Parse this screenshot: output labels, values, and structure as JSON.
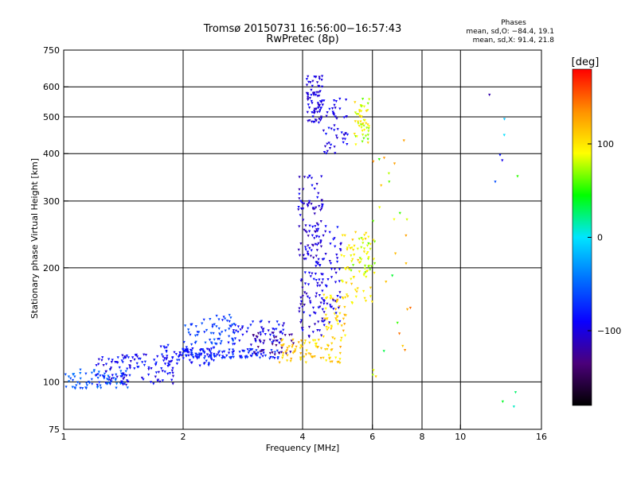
{
  "header": {
    "title_line1": "Tromsø 20150731 16:56:00−16:57:43",
    "title_line2": "RwPretec (8p)"
  },
  "stats": {
    "heading": "Phases",
    "o_line": "mean, sd,O: −84.4, 19.1",
    "x_line": "mean, sd,X:  91.4, 21.8"
  },
  "colorbar": {
    "label": "[deg]",
    "ticks": [
      {
        "value": 100,
        "label": "100"
      },
      {
        "value": 0,
        "label": "0"
      },
      {
        "value": -100,
        "label": "−100"
      }
    ],
    "range": [
      -180,
      180
    ],
    "gradient": [
      "#000000",
      "#4b007a",
      "#0a00ff",
      "#0070ff",
      "#00e5ff",
      "#00ff00",
      "#ffff00",
      "#ff9000",
      "#ff0000"
    ]
  },
  "chart_data": {
    "type": "scatter",
    "xlabel": "Frequency [MHz]",
    "ylabel": "Stationary phase Virtual Height [km]",
    "xscale": "log",
    "yscale": "log",
    "xlim": [
      1,
      16
    ],
    "ylim": [
      75,
      750
    ],
    "xticks": [
      {
        "value": 1,
        "label": "1"
      },
      {
        "value": 2,
        "label": "2"
      },
      {
        "value": 4,
        "label": "4"
      },
      {
        "value": 6,
        "label": "6"
      },
      {
        "value": 8,
        "label": "8"
      },
      {
        "value": 10,
        "label": "10"
      },
      {
        "value": 16,
        "label": "16"
      }
    ],
    "yticks": [
      {
        "value": 75,
        "label": "75"
      },
      {
        "value": 100,
        "label": "100"
      },
      {
        "value": 200,
        "label": "200"
      },
      {
        "value": 300,
        "label": "300"
      },
      {
        "value": 400,
        "label": "400"
      },
      {
        "value": 500,
        "label": "500"
      },
      {
        "value": 600,
        "label": "600"
      },
      {
        "value": 750,
        "label": "750"
      }
    ],
    "xgrid": [
      2,
      4,
      6,
      8,
      10
    ],
    "ygrid": [
      100,
      200,
      300,
      400,
      500,
      600
    ],
    "grid": true,
    "color_by": "phase [deg]",
    "clusters": [
      {
        "f": [
          1.0,
          1.45
        ],
        "h": [
          96,
          108
        ],
        "phase": [
          -70,
          -40
        ],
        "n": 70
      },
      {
        "f": [
          1.2,
          1.9
        ],
        "h": [
          98,
          118
        ],
        "phase": [
          -110,
          -75
        ],
        "n": 110
      },
      {
        "f": [
          1.7,
          2.4
        ],
        "h": [
          110,
          125
        ],
        "phase": [
          -100,
          -70
        ],
        "n": 70
      },
      {
        "f": [
          2.0,
          3.5
        ],
        "h": [
          115,
          122
        ],
        "phase": [
          -95,
          -65
        ],
        "n": 110
      },
      {
        "f": [
          2.0,
          2.7
        ],
        "h": [
          125,
          150
        ],
        "phase": [
          -80,
          -50
        ],
        "n": 60
      },
      {
        "f": [
          2.6,
          3.6
        ],
        "h": [
          125,
          145
        ],
        "phase": [
          -110,
          -70
        ],
        "n": 60
      },
      {
        "f": [
          3.0,
          3.8
        ],
        "h": [
          118,
          135
        ],
        "phase": [
          -140,
          -110
        ],
        "n": 35
      },
      {
        "f": [
          3.5,
          5.0
        ],
        "h": [
          112,
          130
        ],
        "phase": [
          90,
          130
        ],
        "n": 80
      },
      {
        "f": [
          4.5,
          5.2
        ],
        "h": [
          130,
          170
        ],
        "phase": [
          90,
          130
        ],
        "n": 45
      },
      {
        "f": [
          3.9,
          4.5
        ],
        "h": [
          130,
          350
        ],
        "phase": [
          -120,
          -85
        ],
        "n": 150
      },
      {
        "f": [
          4.3,
          5.0
        ],
        "h": [
          140,
          260
        ],
        "phase": [
          -110,
          -80
        ],
        "n": 70
      },
      {
        "f": [
          5.0,
          6.0
        ],
        "h": [
          160,
          250
        ],
        "phase": [
          80,
          120
        ],
        "n": 60
      },
      {
        "f": [
          5.3,
          6.1
        ],
        "h": [
          190,
          240
        ],
        "phase": [
          60,
          100
        ],
        "n": 30
      },
      {
        "f": [
          4.1,
          4.5
        ],
        "h": [
          480,
          640
        ],
        "phase": [
          -115,
          -85
        ],
        "n": 80
      },
      {
        "f": [
          4.5,
          5.2
        ],
        "h": [
          400,
          560
        ],
        "phase": [
          -110,
          -80
        ],
        "n": 50
      },
      {
        "f": [
          5.4,
          5.9
        ],
        "h": [
          420,
          560
        ],
        "phase": [
          60,
          110
        ],
        "n": 50
      },
      {
        "f": [
          5.9,
          7.2
        ],
        "h": [
          100,
          420
        ],
        "phase": [
          30,
          140
        ],
        "n": 20
      },
      {
        "f": [
          7.0,
          7.5
        ],
        "h": [
          100,
          470
        ],
        "phase": [
          80,
          150
        ],
        "n": 8
      },
      {
        "f": [
          11.5,
          14.5
        ],
        "h": [
          320,
          620
        ],
        "phase": [
          -120,
          100
        ],
        "n": 7
      },
      {
        "f": [
          12.5,
          14.0
        ],
        "h": [
          85,
          95
        ],
        "phase": [
          -20,
          100
        ],
        "n": 3
      }
    ]
  }
}
